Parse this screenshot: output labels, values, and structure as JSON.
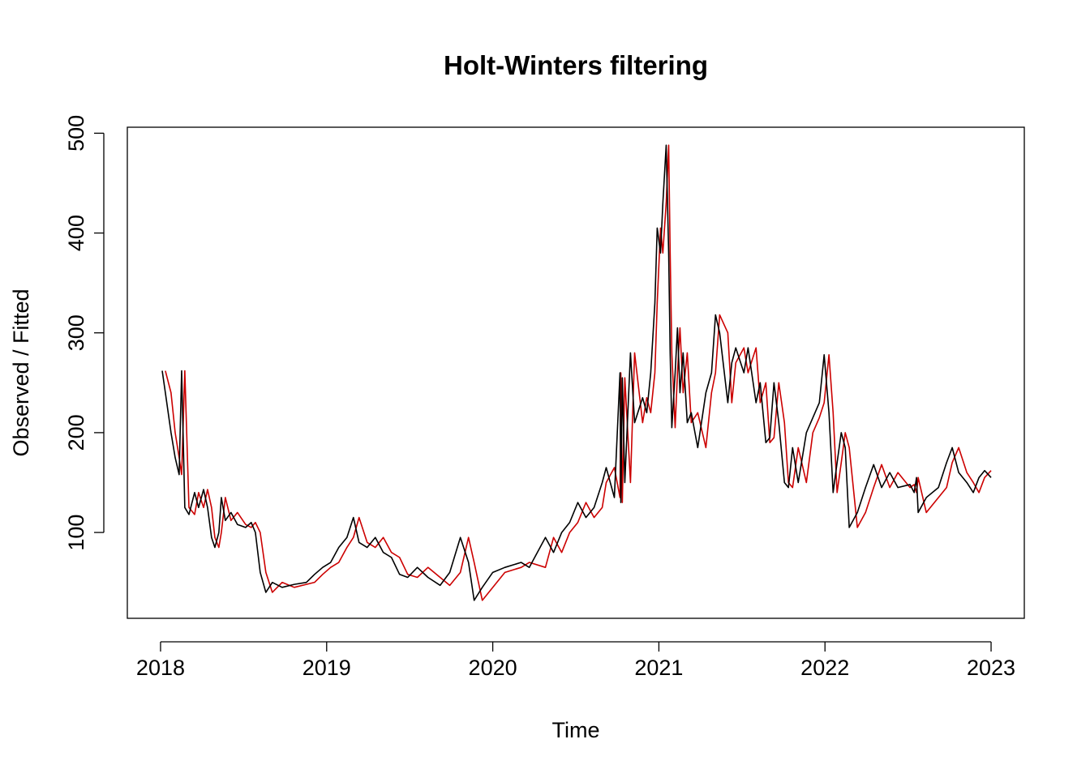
{
  "chart_data": {
    "type": "line",
    "title": "Holt-Winters filtering",
    "x_label": "Time",
    "y_label": "Observed / Fitted",
    "x": [
      2018.01,
      2018.029,
      2018.063,
      2018.088,
      2018.112,
      2018.127,
      2018.146,
      2018.171,
      2018.205,
      2018.229,
      2018.259,
      2018.283,
      2018.307,
      2018.327,
      2018.351,
      2018.366,
      2018.39,
      2018.424,
      2018.463,
      2018.512,
      2018.546,
      2018.571,
      2018.6,
      2018.634,
      2018.673,
      2018.732,
      2018.805,
      2018.878,
      2018.927,
      2018.976,
      2019.024,
      2019.073,
      2019.122,
      2019.161,
      2019.195,
      2019.244,
      2019.293,
      2019.341,
      2019.39,
      2019.439,
      2019.488,
      2019.546,
      2019.61,
      2019.683,
      2019.741,
      2019.805,
      2019.854,
      2019.888,
      2019.937,
      2020.0,
      2020.073,
      2020.171,
      2020.22,
      2020.317,
      2020.366,
      2020.415,
      2020.463,
      2020.512,
      2020.561,
      2020.61,
      2020.659,
      2020.683,
      2020.732,
      2020.766,
      2020.771,
      2020.78,
      2020.795,
      2020.829,
      2020.854,
      2020.902,
      2020.927,
      2020.951,
      2020.976,
      2020.99,
      2021.01,
      2021.024,
      2021.044,
      2021.059,
      2021.068,
      2021.078,
      2021.098,
      2021.112,
      2021.127,
      2021.146,
      2021.171,
      2021.195,
      2021.234,
      2021.283,
      2021.317,
      2021.341,
      2021.366,
      2021.415,
      2021.439,
      2021.463,
      2021.512,
      2021.537,
      2021.585,
      2021.61,
      2021.644,
      2021.668,
      2021.693,
      2021.722,
      2021.756,
      2021.78,
      2021.805,
      2021.839,
      2021.888,
      2021.927,
      2021.966,
      2021.995,
      2022.024,
      2022.049,
      2022.073,
      2022.098,
      2022.122,
      2022.146,
      2022.195,
      2022.244,
      2022.293,
      2022.341,
      2022.39,
      2022.439,
      2022.512,
      2022.537,
      2022.551,
      2022.561,
      2022.61,
      2022.683,
      2022.732,
      2022.766,
      2022.805,
      2022.854,
      2022.893,
      2022.927,
      2022.961,
      2023.0
    ],
    "series": [
      {
        "color": "#cc0000",
        "values": [
          null,
          262,
          240,
          200,
          175,
          158,
          262,
          125,
          118,
          140,
          125,
          143,
          125,
          95,
          85,
          100,
          135,
          112,
          120,
          108,
          105,
          110,
          100,
          60,
          40,
          50,
          45,
          48,
          50,
          58,
          65,
          70,
          85,
          95,
          115,
          90,
          85,
          95,
          80,
          75,
          58,
          55,
          65,
          55,
          47,
          60,
          95,
          70,
          32,
          45,
          60,
          65,
          70,
          65,
          95,
          80,
          100,
          110,
          130,
          115,
          125,
          150,
          165,
          135,
          260,
          130,
          255,
          150,
          280,
          210,
          235,
          220,
          260,
          330,
          405,
          380,
          430,
          488,
          380,
          280,
          205,
          260,
          305,
          240,
          280,
          210,
          220,
          185,
          240,
          260,
          318,
          300,
          230,
          270,
          285,
          260,
          285,
          230,
          250,
          190,
          195,
          250,
          210,
          150,
          145,
          185,
          150,
          200,
          215,
          230,
          278,
          220,
          140,
          170,
          200,
          185,
          105,
          120,
          145,
          168,
          145,
          160,
          145,
          148,
          140,
          155,
          120,
          135,
          145,
          170,
          185,
          160,
          150,
          140,
          155,
          162
        ]
      },
      {
        "color": "#000000",
        "values": [
          262,
          240,
          200,
          175,
          158,
          262,
          125,
          118,
          140,
          125,
          143,
          125,
          95,
          85,
          100,
          135,
          112,
          120,
          108,
          105,
          110,
          100,
          60,
          40,
          50,
          45,
          48,
          50,
          58,
          65,
          70,
          85,
          95,
          115,
          90,
          85,
          95,
          80,
          75,
          58,
          55,
          65,
          55,
          47,
          60,
          95,
          70,
          32,
          45,
          60,
          65,
          70,
          65,
          95,
          80,
          100,
          110,
          130,
          115,
          125,
          150,
          165,
          135,
          260,
          130,
          255,
          150,
          280,
          210,
          235,
          220,
          260,
          330,
          405,
          380,
          430,
          488,
          380,
          280,
          205,
          260,
          305,
          240,
          280,
          210,
          220,
          185,
          240,
          260,
          318,
          300,
          230,
          270,
          285,
          260,
          285,
          230,
          250,
          190,
          195,
          250,
          210,
          150,
          145,
          185,
          150,
          200,
          215,
          230,
          278,
          220,
          140,
          170,
          200,
          185,
          105,
          120,
          145,
          168,
          145,
          160,
          145,
          148,
          140,
          155,
          120,
          135,
          145,
          170,
          185,
          160,
          150,
          140,
          155,
          162,
          155
        ]
      }
    ],
    "xlim": [
      2017.8,
      2023.2
    ],
    "ylim": [
      14,
      506
    ],
    "xticks": [
      2018,
      2019,
      2020,
      2021,
      2022,
      2023
    ],
    "yticks": [
      100,
      200,
      300,
      400,
      500
    ]
  }
}
